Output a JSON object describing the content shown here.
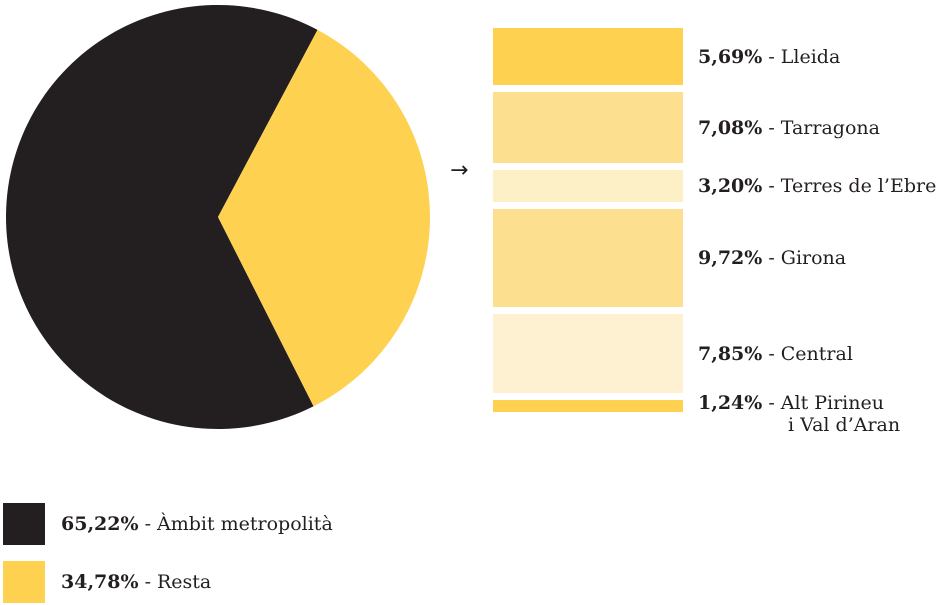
{
  "chart_data": [
    {
      "type": "pie",
      "slices": [
        {
          "label": "Àmbit metropolità",
          "value": 65.22,
          "value_label": "65,22%",
          "color": "#231f20"
        },
        {
          "label": "Resta",
          "value": 34.78,
          "value_label": "34,78%",
          "color": "#fed150"
        }
      ],
      "legend_placement": "bottom"
    },
    {
      "type": "bar",
      "orientation": "stacked-vertical",
      "arrow": "→",
      "categories": [
        "Lleida",
        "Tarragona",
        "Terres de l’Ebre",
        "Girona",
        "Central",
        "Alt Pirineu i Val d’Aran"
      ],
      "name_line1": [
        "Lleida",
        "Tarragona",
        "Terres de l’Ebre",
        "Girona",
        "Central",
        "Alt Pirineu"
      ],
      "name_line2": [
        "",
        "",
        "",
        "",
        "",
        "i Val d’Aran"
      ],
      "values": [
        5.69,
        7.08,
        3.2,
        9.72,
        7.85,
        1.24
      ],
      "value_labels": [
        "5,69%",
        "7,08%",
        "3,20%",
        "9,72%",
        "7,85%",
        "1,24%"
      ],
      "colors": [
        "#fed150",
        "#fde08f",
        "#fdefc6",
        "#fde08f",
        "#fdf1d2",
        "#fed150"
      ]
    }
  ],
  "separator": "-"
}
